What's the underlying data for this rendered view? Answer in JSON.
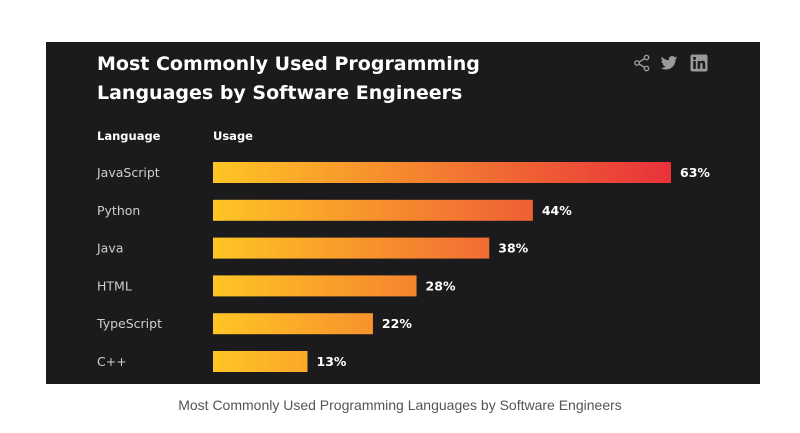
{
  "chart_data": {
    "type": "bar",
    "orientation": "horizontal",
    "title": "Most Commonly Used Programming Languages by Software Engineers",
    "column_headers": {
      "category": "Language",
      "value": "Usage"
    },
    "categories": [
      "JavaScript",
      "Python",
      "Java",
      "HTML",
      "TypeScript",
      "C++"
    ],
    "values": [
      63,
      44,
      38,
      28,
      22,
      13
    ],
    "value_labels": [
      "63%",
      "44%",
      "38%",
      "28%",
      "22%",
      "13%"
    ],
    "unit": "%",
    "grid": false,
    "legend": "none",
    "colors": {
      "bar_start": "#ffc526",
      "bar_end": "#e8323a",
      "background": "#1b1b1d",
      "label_text": "#cfcfcf",
      "value_text": "#ffffff"
    }
  },
  "share_icons": [
    "share-icon",
    "twitter-icon",
    "linkedin-icon"
  ],
  "caption": "Most Commonly Used Programming Languages by Software Engineers"
}
